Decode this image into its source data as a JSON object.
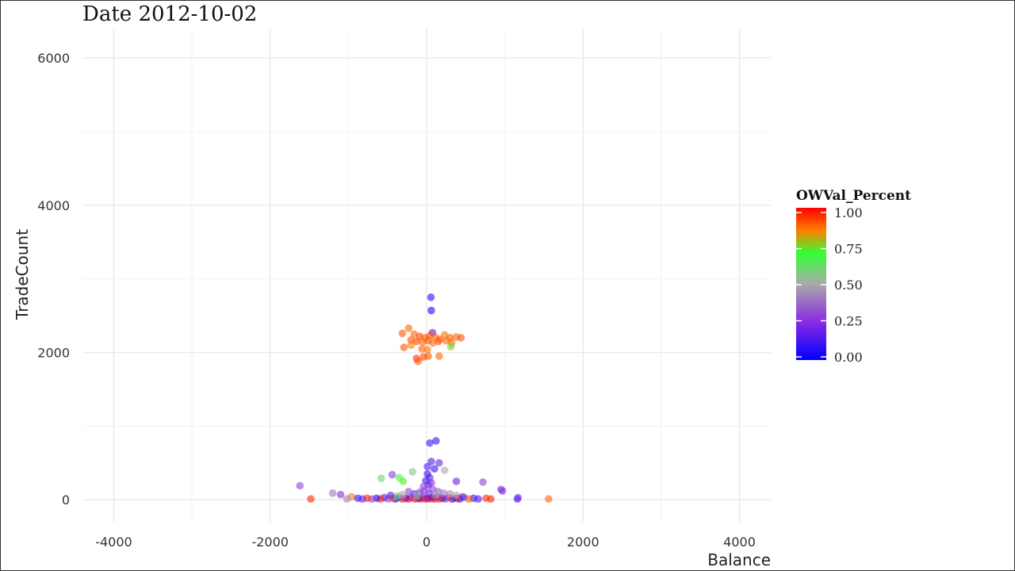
{
  "chart_data": {
    "type": "scatter",
    "title": "Date 2012-10-02",
    "xlabel": "Balance",
    "ylabel": "TradeCount",
    "xlim": [
      -4400,
      4400
    ],
    "ylim": [
      -300,
      6400
    ],
    "x_ticks": [
      -4000,
      -2000,
      0,
      2000,
      4000
    ],
    "y_ticks": [
      0,
      2000,
      4000,
      6000
    ],
    "x_tick_labels": [
      "-4000",
      "-2000",
      "0",
      "2000",
      "4000"
    ],
    "y_tick_labels": [
      "0",
      "2000",
      "4000",
      "6000"
    ],
    "grid": true,
    "legend": {
      "title": "OWVal_Percent",
      "placement": "right",
      "labels": [
        "1.00",
        "0.75",
        "0.50",
        "0.25",
        "0.00"
      ],
      "values": [
        1.0,
        0.75,
        0.5,
        0.25,
        0.0
      ],
      "colors": [
        "#0000ff",
        "#8a2be2",
        "#a9a9a9",
        "#33ff33",
        "#ff7f00",
        "#ff0000"
      ]
    },
    "points": [
      {
        "x": 55,
        "y": 2750,
        "c": 0.08
      },
      {
        "x": 60,
        "y": 2570,
        "c": 0.05
      },
      {
        "x": 75,
        "y": 2270,
        "c": 0.15
      },
      {
        "x": -230,
        "y": 2330,
        "c": 0.88
      },
      {
        "x": -310,
        "y": 2260,
        "c": 0.9
      },
      {
        "x": -160,
        "y": 2250,
        "c": 0.88
      },
      {
        "x": -90,
        "y": 2220,
        "c": 0.92
      },
      {
        "x": -20,
        "y": 2200,
        "c": 0.9
      },
      {
        "x": 40,
        "y": 2230,
        "c": 0.9
      },
      {
        "x": 110,
        "y": 2210,
        "c": 0.88
      },
      {
        "x": 170,
        "y": 2180,
        "c": 0.9
      },
      {
        "x": 230,
        "y": 2240,
        "c": 0.86
      },
      {
        "x": 300,
        "y": 2200,
        "c": 0.9
      },
      {
        "x": 380,
        "y": 2210,
        "c": 0.88
      },
      {
        "x": 440,
        "y": 2200,
        "c": 0.9
      },
      {
        "x": -200,
        "y": 2170,
        "c": 0.9
      },
      {
        "x": -130,
        "y": 2150,
        "c": 0.92
      },
      {
        "x": -50,
        "y": 2140,
        "c": 0.88
      },
      {
        "x": 20,
        "y": 2160,
        "c": 0.9
      },
      {
        "x": 80,
        "y": 2130,
        "c": 0.88
      },
      {
        "x": 150,
        "y": 2150,
        "c": 0.9
      },
      {
        "x": 250,
        "y": 2160,
        "c": 0.88
      },
      {
        "x": 320,
        "y": 2130,
        "c": 0.87
      },
      {
        "x": -290,
        "y": 2070,
        "c": 0.9
      },
      {
        "x": -60,
        "y": 2050,
        "c": 0.88
      },
      {
        "x": 10,
        "y": 2040,
        "c": 0.86
      },
      {
        "x": -40,
        "y": 1940,
        "c": 0.92
      },
      {
        "x": 20,
        "y": 1950,
        "c": 0.9
      },
      {
        "x": -130,
        "y": 1920,
        "c": 0.94
      },
      {
        "x": -110,
        "y": 1880,
        "c": 0.9
      },
      {
        "x": 160,
        "y": 1950,
        "c": 0.88
      },
      {
        "x": 310,
        "y": 2080,
        "c": 0.75
      },
      {
        "x": -200,
        "y": 2100,
        "c": 0.85
      },
      {
        "x": 120,
        "y": 800,
        "c": 0.1
      },
      {
        "x": 40,
        "y": 770,
        "c": 0.12
      },
      {
        "x": 60,
        "y": 520,
        "c": 0.15
      },
      {
        "x": 160,
        "y": 500,
        "c": 0.2
      },
      {
        "x": 10,
        "y": 450,
        "c": 0.15
      },
      {
        "x": 100,
        "y": 420,
        "c": 0.1
      },
      {
        "x": 230,
        "y": 400,
        "c": 0.5
      },
      {
        "x": -180,
        "y": 380,
        "c": 0.55
      },
      {
        "x": -440,
        "y": 340,
        "c": 0.28
      },
      {
        "x": -580,
        "y": 290,
        "c": 0.6
      },
      {
        "x": -350,
        "y": 300,
        "c": 0.68
      },
      {
        "x": -300,
        "y": 250,
        "c": 0.72
      },
      {
        "x": 380,
        "y": 250,
        "c": 0.2
      },
      {
        "x": 720,
        "y": 240,
        "c": 0.3
      },
      {
        "x": -1620,
        "y": 190,
        "c": 0.3
      },
      {
        "x": 950,
        "y": 140,
        "c": 0.25
      },
      {
        "x": 970,
        "y": 120,
        "c": 0.22
      },
      {
        "x": -1200,
        "y": 90,
        "c": 0.4
      },
      {
        "x": -1100,
        "y": 70,
        "c": 0.25
      },
      {
        "x": -960,
        "y": 40,
        "c": 0.85
      },
      {
        "x": -1020,
        "y": 10,
        "c": 0.42
      },
      {
        "x": -1480,
        "y": 10,
        "c": 0.95
      },
      {
        "x": 1560,
        "y": 10,
        "c": 0.88
      },
      {
        "x": 1170,
        "y": 30,
        "c": 0.28
      },
      {
        "x": 1160,
        "y": 10,
        "c": 0.15
      },
      {
        "x": 820,
        "y": 10,
        "c": 0.96
      },
      {
        "x": 760,
        "y": 20,
        "c": 0.95
      },
      {
        "x": 660,
        "y": 10,
        "c": 0.15
      },
      {
        "x": 600,
        "y": 20,
        "c": 0.1
      },
      {
        "x": 540,
        "y": 10,
        "c": 0.9
      },
      {
        "x": 480,
        "y": 30,
        "c": 0.35
      },
      {
        "x": 420,
        "y": 10,
        "c": 0.05
      },
      {
        "x": 380,
        "y": 20,
        "c": 0.98
      },
      {
        "x": 330,
        "y": 10,
        "c": 0.02
      },
      {
        "x": 280,
        "y": 30,
        "c": 0.96
      },
      {
        "x": 240,
        "y": 10,
        "c": 0.3
      },
      {
        "x": 200,
        "y": 20,
        "c": 0.05
      },
      {
        "x": 160,
        "y": 10,
        "c": 0.97
      },
      {
        "x": 130,
        "y": 40,
        "c": 0.2
      },
      {
        "x": 100,
        "y": 10,
        "c": 0.99
      },
      {
        "x": 70,
        "y": 30,
        "c": 0.04
      },
      {
        "x": 40,
        "y": 10,
        "c": 0.95
      },
      {
        "x": 10,
        "y": 20,
        "c": 0.1
      },
      {
        "x": -20,
        "y": 10,
        "c": 0.98
      },
      {
        "x": -50,
        "y": 30,
        "c": 0.2
      },
      {
        "x": -80,
        "y": 10,
        "c": 0.96
      },
      {
        "x": -110,
        "y": 20,
        "c": 0.05
      },
      {
        "x": -150,
        "y": 10,
        "c": 0.97
      },
      {
        "x": -190,
        "y": 30,
        "c": 0.3
      },
      {
        "x": -230,
        "y": 10,
        "c": 0.99
      },
      {
        "x": -270,
        "y": 20,
        "c": 0.08
      },
      {
        "x": -310,
        "y": 10,
        "c": 0.95
      },
      {
        "x": -350,
        "y": 30,
        "c": 0.25
      },
      {
        "x": -400,
        "y": 10,
        "c": 0.02
      },
      {
        "x": -440,
        "y": 20,
        "c": 0.9
      },
      {
        "x": -490,
        "y": 10,
        "c": 0.35
      },
      {
        "x": -540,
        "y": 30,
        "c": 0.15
      },
      {
        "x": -590,
        "y": 10,
        "c": 0.97
      },
      {
        "x": -640,
        "y": 20,
        "c": 0.05
      },
      {
        "x": -700,
        "y": 10,
        "c": 0.3
      },
      {
        "x": -760,
        "y": 20,
        "c": 0.95
      },
      {
        "x": -820,
        "y": 10,
        "c": 0.2
      },
      {
        "x": -880,
        "y": 20,
        "c": 0.1
      },
      {
        "x": 30,
        "y": 90,
        "c": 0.22
      },
      {
        "x": -30,
        "y": 120,
        "c": 0.28
      },
      {
        "x": 80,
        "y": 140,
        "c": 0.3
      },
      {
        "x": -90,
        "y": 100,
        "c": 0.25
      },
      {
        "x": 150,
        "y": 110,
        "c": 0.35
      },
      {
        "x": -160,
        "y": 80,
        "c": 0.2
      },
      {
        "x": 220,
        "y": 90,
        "c": 0.4
      },
      {
        "x": -230,
        "y": 110,
        "c": 0.3
      },
      {
        "x": 300,
        "y": 80,
        "c": 0.45
      },
      {
        "x": -310,
        "y": 70,
        "c": 0.5
      },
      {
        "x": 20,
        "y": 200,
        "c": 0.15
      },
      {
        "x": -10,
        "y": 260,
        "c": 0.12
      },
      {
        "x": 40,
        "y": 300,
        "c": 0.18
      },
      {
        "x": 10,
        "y": 350,
        "c": 0.1
      },
      {
        "x": 60,
        "y": 230,
        "c": 0.25
      },
      {
        "x": -40,
        "y": 180,
        "c": 0.3
      },
      {
        "x": 120,
        "y": 60,
        "c": 0.5
      },
      {
        "x": -120,
        "y": 50,
        "c": 0.55
      },
      {
        "x": 380,
        "y": 60,
        "c": 0.48
      },
      {
        "x": -380,
        "y": 50,
        "c": 0.6
      },
      {
        "x": 460,
        "y": 40,
        "c": 0.2
      },
      {
        "x": -460,
        "y": 60,
        "c": 0.18
      }
    ]
  }
}
